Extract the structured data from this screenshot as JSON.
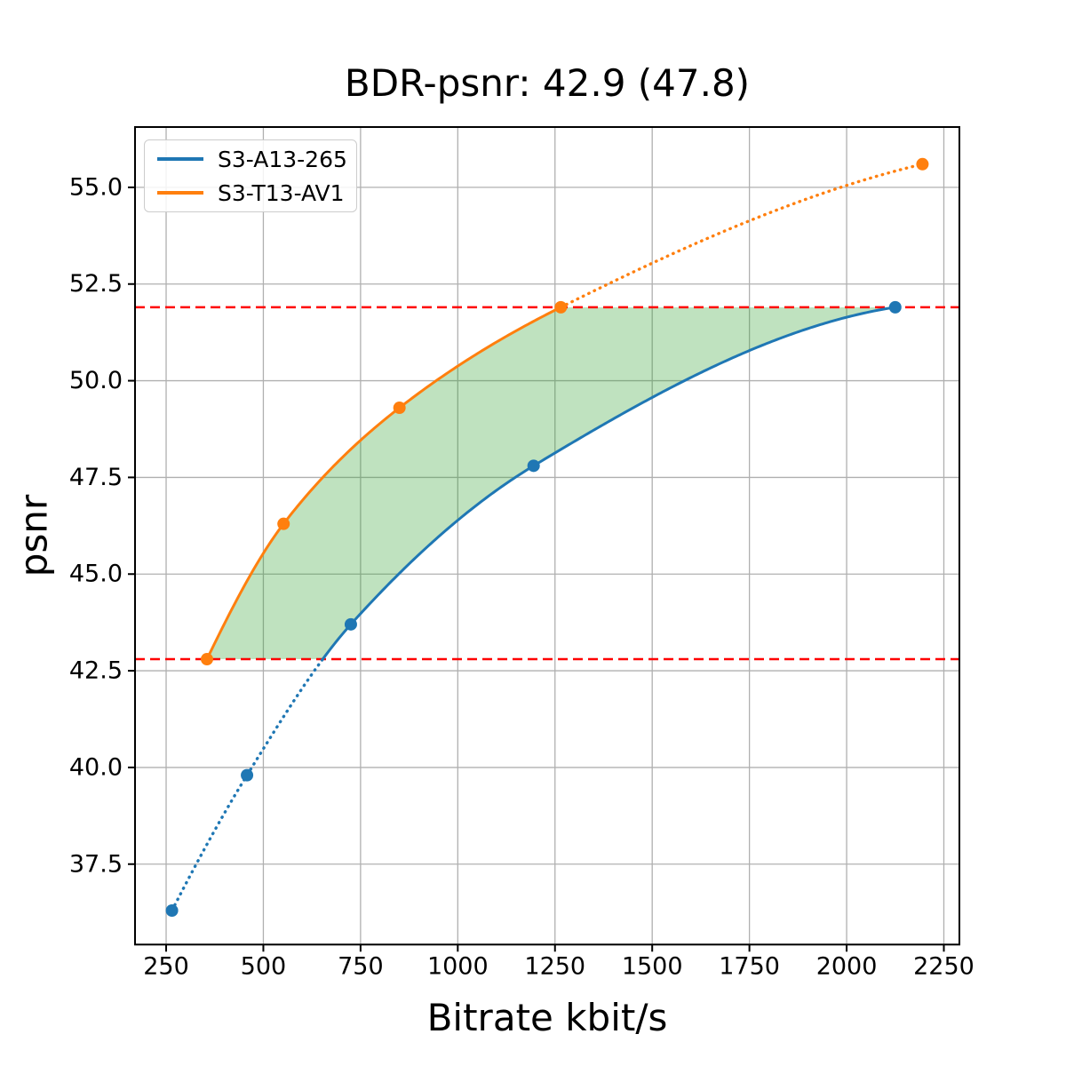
{
  "figure": {
    "title": "BDR-psnr: 42.9 (47.8)",
    "xlabel": "Bitrate kbit/s",
    "ylabel": "psnr"
  },
  "legend": {
    "position": "upper left",
    "items": [
      {
        "label": "S3-A13-265",
        "color": "#1f77b4"
      },
      {
        "label": "S3-T13-AV1",
        "color": "#ff7f0e"
      }
    ]
  },
  "chart_data": {
    "type": "line",
    "title": "BDR-psnr: 42.9 (47.8)",
    "xlabel": "Bitrate kbit/s",
    "ylabel": "psnr",
    "xlim": [
      170,
      2290
    ],
    "ylim": [
      35.42,
      56.56
    ],
    "xtick_values": [
      250,
      500,
      750,
      1000,
      1250,
      1500,
      1750,
      2000,
      2250
    ],
    "xtick_labels": [
      "250",
      "500",
      "750",
      "1000",
      "1250",
      "1500",
      "1750",
      "2000",
      "2250"
    ],
    "ytick_values": [
      37.5,
      40.0,
      42.5,
      45.0,
      47.5,
      50.0,
      52.5,
      55.0
    ],
    "ytick_labels": [
      "37.5",
      "40.0",
      "42.5",
      "45.0",
      "47.5",
      "50.0",
      "52.5",
      "55.0"
    ],
    "grid": true,
    "grid_color": "#b0b0b0",
    "series": [
      {
        "name": "S3-A13-265",
        "color": "#1f77b4",
        "x": [
          265,
          458,
          725,
          1195,
          2125
        ],
        "y": [
          36.3,
          39.8,
          43.7,
          47.8,
          51.9
        ],
        "marker": "circle",
        "solid_psnr_range": [
          42.8,
          51.9
        ]
      },
      {
        "name": "S3-T13-AV1",
        "color": "#ff7f0e",
        "x": [
          355,
          552,
          850,
          1265,
          2195
        ],
        "y": [
          42.8,
          46.3,
          49.3,
          51.9,
          55.6
        ],
        "marker": "circle",
        "solid_psnr_range": [
          42.8,
          51.9
        ]
      }
    ],
    "hlines": [
      {
        "y": 42.8,
        "color": "#ff0000",
        "style": "dashed"
      },
      {
        "y": 51.9,
        "color": "#ff0000",
        "style": "dashed"
      }
    ],
    "shaded_region": {
      "description": "area between the two RD curves for psnr between 42.8 and 51.9",
      "fill_color": "rgba(44,160,44,0.3)",
      "psnr_range": [
        42.8,
        51.9
      ]
    }
  }
}
